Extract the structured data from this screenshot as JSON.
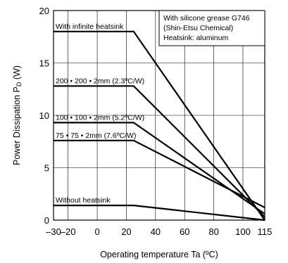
{
  "chart_data": {
    "type": "line",
    "xlabel": "Operating temperature   Ta (ºC)",
    "ylabel": "Power Dissipation   P",
    "ylabel_sub": "D",
    "ylabel_unit": " (W)",
    "xlim": [
      -30,
      115
    ],
    "ylim": [
      0,
      20
    ],
    "x_ticks": [
      -30,
      -20,
      0,
      20,
      40,
      60,
      80,
      100,
      115
    ],
    "x_tick_labels": [
      "–30",
      "–20",
      "0",
      "20",
      "40",
      "60",
      "80",
      "100",
      "115"
    ],
    "y_ticks": [
      0,
      5,
      10,
      15,
      20
    ],
    "y_tick_labels": [
      "0",
      "5",
      "10",
      "15",
      "20"
    ],
    "grid": true,
    "series": [
      {
        "name": "With infinite heatsink",
        "x": [
          -30,
          25,
          115
        ],
        "y": [
          18,
          18,
          0
        ]
      },
      {
        "name": "200 • 200 • 2mm (2.3ºC/W)",
        "x": [
          -30,
          25,
          115
        ],
        "y": [
          12.8,
          12.8,
          0.3
        ]
      },
      {
        "name": "100 • 100 • 2mm (5.2ºC/W)",
        "x": [
          -30,
          25,
          115
        ],
        "y": [
          9.3,
          9.3,
          0.6
        ]
      },
      {
        "name": "75 • 75 • 2mm (7.6ºC/W)",
        "x": [
          -30,
          25,
          115
        ],
        "y": [
          7.6,
          7.6,
          1.2
        ]
      },
      {
        "name": "Without heatsink",
        "x": [
          -30,
          25,
          115
        ],
        "y": [
          1.4,
          1.4,
          0
        ]
      }
    ],
    "annotation_lines": [
      "With silicone grease G746",
      "(Shin-Etsu Chemical)",
      "Heatsink: aluminum"
    ]
  }
}
